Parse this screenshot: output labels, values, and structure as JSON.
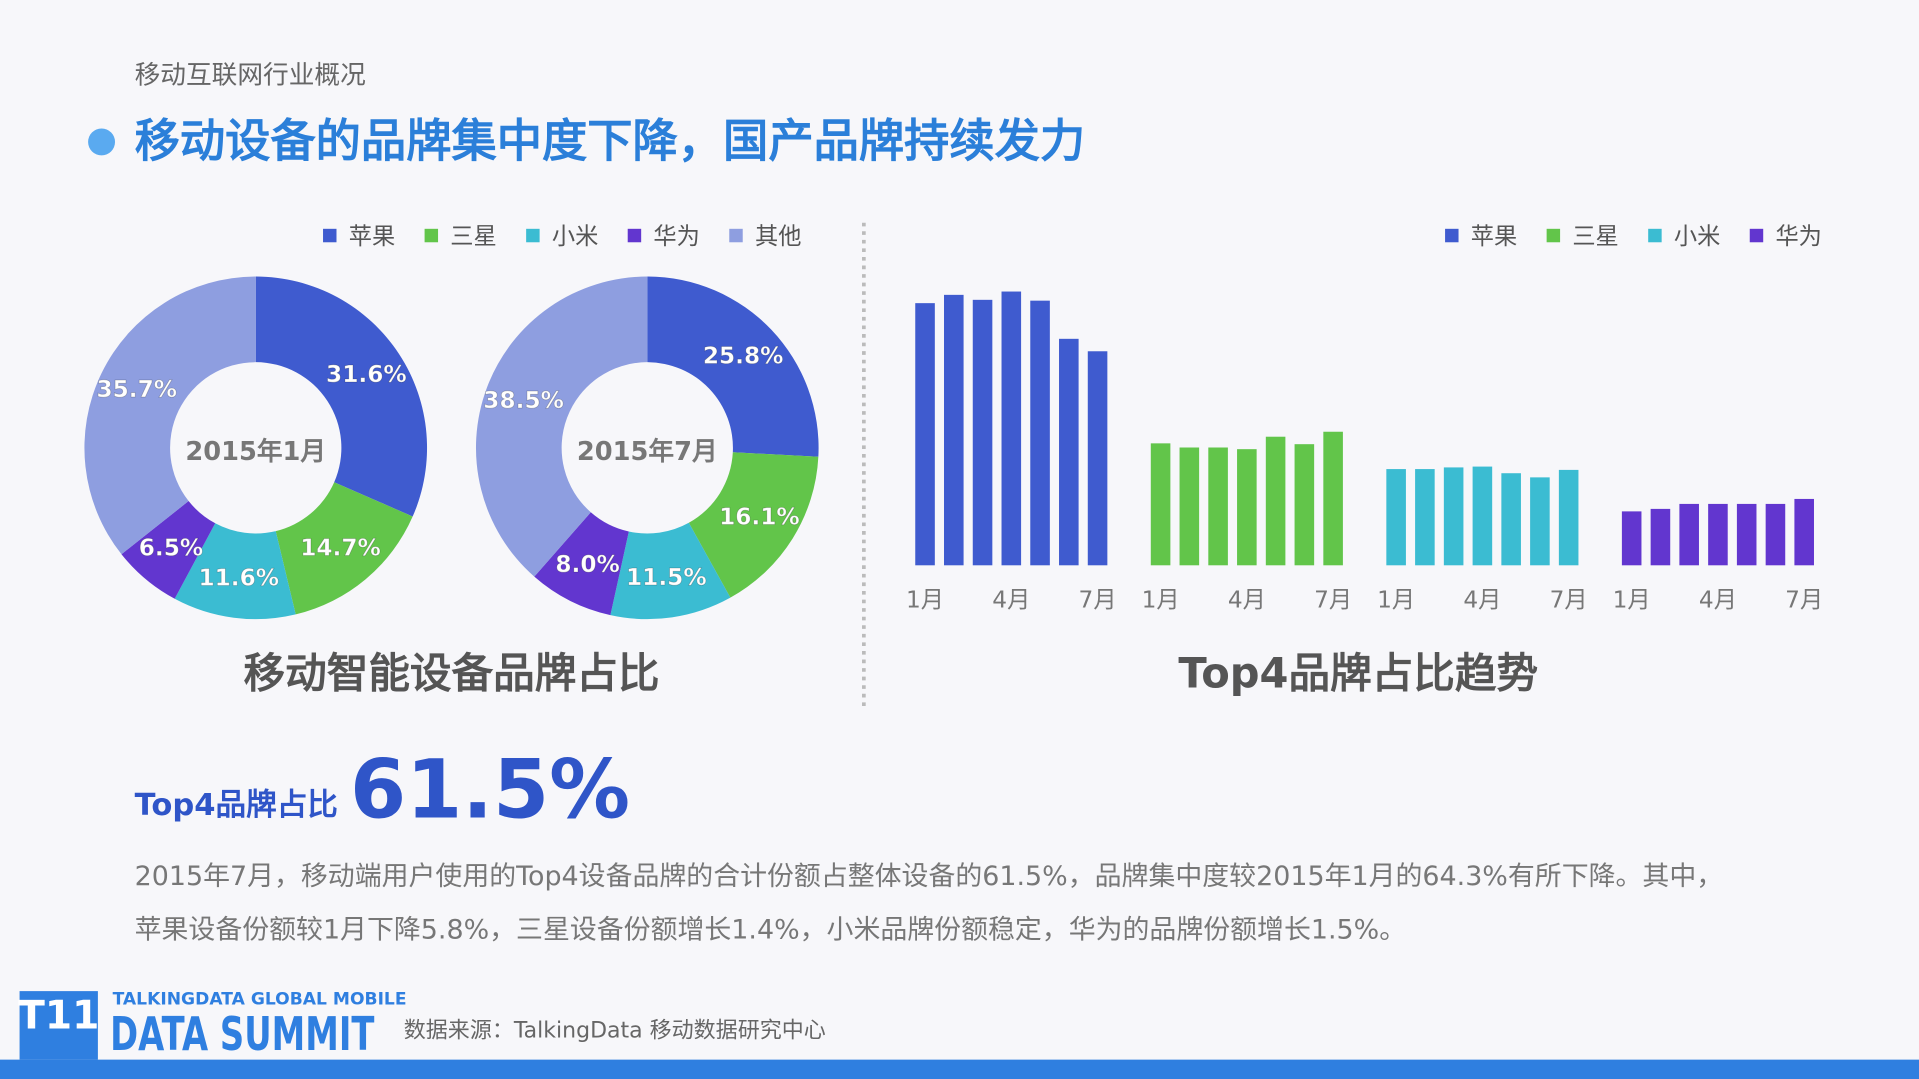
{
  "header": {
    "section": "移动互联网行业概况",
    "title": "移动设备的品牌集中度下降，国产品牌持续发力"
  },
  "chart_data": [
    {
      "type": "donut",
      "title": "移动智能设备品牌占比",
      "categories": [
        "苹果",
        "三星",
        "小米",
        "华为",
        "其他"
      ],
      "colors": [
        "#3f5bcf",
        "#62c54a",
        "#3bbcd2",
        "#6236cf",
        "#8e9ee0"
      ],
      "series": [
        {
          "name": "2015年1月",
          "values": [
            31.6,
            14.7,
            11.6,
            6.5,
            35.7
          ],
          "value_labels": [
            "31.6%",
            "14.7%",
            "11.6%",
            "6.5%",
            "35.7%"
          ]
        },
        {
          "name": "2015年7月",
          "values": [
            25.8,
            16.1,
            11.5,
            8.0,
            38.5
          ],
          "value_labels": [
            "25.8%",
            "16.1%",
            "11.5%",
            "8.0%",
            "38.5%"
          ]
        }
      ]
    },
    {
      "type": "bar",
      "title": "Top4品牌占比趋势",
      "categories": [
        "1月",
        null,
        null,
        "4月",
        null,
        null,
        "7月"
      ],
      "series": [
        {
          "name": "苹果",
          "color": "#3f5bcf",
          "values": [
            31.6,
            32.6,
            32.0,
            33.0,
            31.9,
            27.3,
            25.8
          ]
        },
        {
          "name": "三星",
          "color": "#62c54a",
          "values": [
            14.7,
            14.2,
            14.2,
            14.0,
            15.5,
            14.6,
            16.1
          ]
        },
        {
          "name": "小米",
          "color": "#3bbcd2",
          "values": [
            11.6,
            11.6,
            11.8,
            11.9,
            11.1,
            10.6,
            11.5
          ]
        },
        {
          "name": "华为",
          "color": "#6236cf",
          "values": [
            6.5,
            6.8,
            7.4,
            7.4,
            7.4,
            7.4,
            8.0
          ]
        }
      ]
    }
  ],
  "summary": {
    "label": "Top4品牌占比",
    "figure": "61.5%",
    "lines": [
      "2015年7月，移动端用户使用的Top4设备品牌的合计份额占整体设备的61.5%，品牌集中度较2015年1月的64.3%有所下降。其中，",
      "苹果设备份额较1月下降5.8%，三星设备份额增长1.4%，小米品牌份额稳定，华为的品牌份额增长1.5%。"
    ]
  },
  "footer": {
    "logo_mark": "T11",
    "logo_top": "TALKINGDATA GLOBAL MOBILE",
    "logo_main": "DATA SUMMIT",
    "source": "数据来源：TalkingData 移动数据研究中心"
  }
}
